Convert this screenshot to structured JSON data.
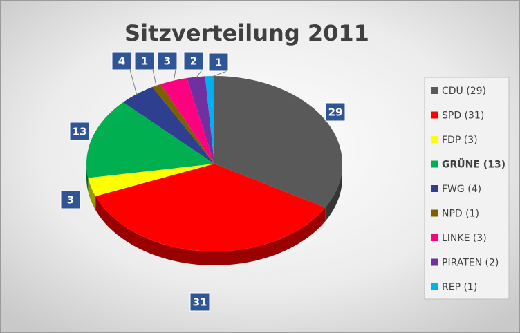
{
  "chart_data": {
    "type": "pie",
    "title": "Sitzverteilung 2011",
    "categories": [
      "CDU (29)",
      "SPD (31)",
      "FDP (3)",
      "GRÜNE (13)",
      "FWG (4)",
      "NPD (1)",
      "LINKE (3)",
      "PIRATEN (2)",
      "REP (1)"
    ],
    "values": [
      29,
      31,
      3,
      13,
      4,
      1,
      3,
      2,
      1
    ],
    "colors": [
      "#595959",
      "#ff0000",
      "#ffff00",
      "#00b050",
      "#2e3f8f",
      "#7f6000",
      "#ff0080",
      "#7030a0",
      "#00b0f0"
    ],
    "legend": "right"
  }
}
